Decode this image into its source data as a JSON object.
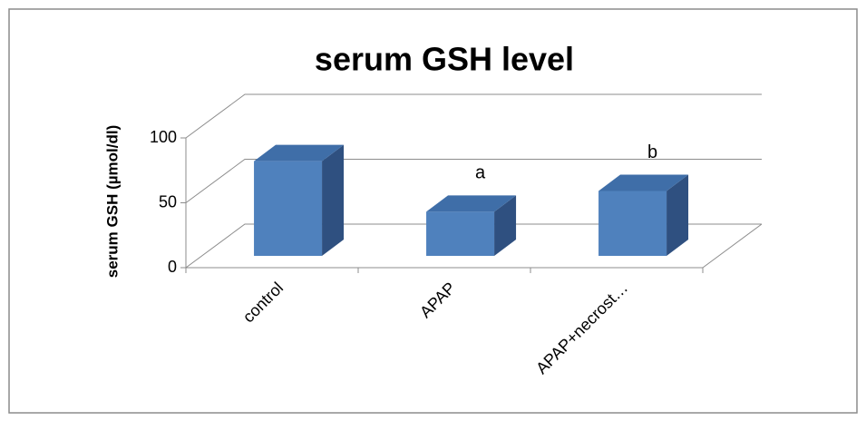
{
  "chart_data": {
    "type": "bar3d",
    "title": "serum GSH level",
    "y_label": "serum GSH (µmol/dl)",
    "categories": [
      "control",
      "APAP",
      "APAP+necrost…"
    ],
    "values": [
      73,
      34,
      50
    ],
    "value_annotations": [
      null,
      "a",
      "b"
    ],
    "color": "#4f81bd",
    "ylim": [
      0,
      100
    ],
    "yticks": [
      0,
      50,
      100
    ],
    "grid": true
  }
}
